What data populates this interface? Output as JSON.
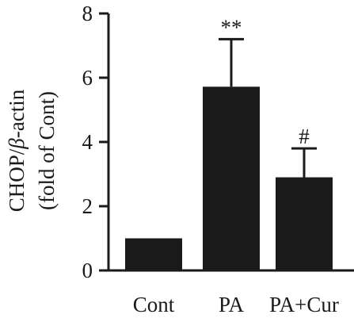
{
  "chart_data": {
    "type": "bar",
    "categories": [
      "Cont",
      "PA",
      "PA+Cur"
    ],
    "values": [
      1.0,
      5.72,
      2.9
    ],
    "error_upper": [
      1.0,
      7.2,
      3.8
    ],
    "significance": [
      "",
      "**",
      "#"
    ],
    "ylabel_line1_prefix": "CHOP/",
    "ylabel_line1_greek": "β",
    "ylabel_line1_suffix": "-actin",
    "ylabel_line2": "(fold of Cont)",
    "xlabel": "",
    "ylim": [
      0,
      8
    ],
    "yticks": [
      0,
      2,
      4,
      6,
      8
    ],
    "grid": false,
    "colors": {
      "bar": "#1a1a1a",
      "axis": "#1a1a1a"
    }
  }
}
